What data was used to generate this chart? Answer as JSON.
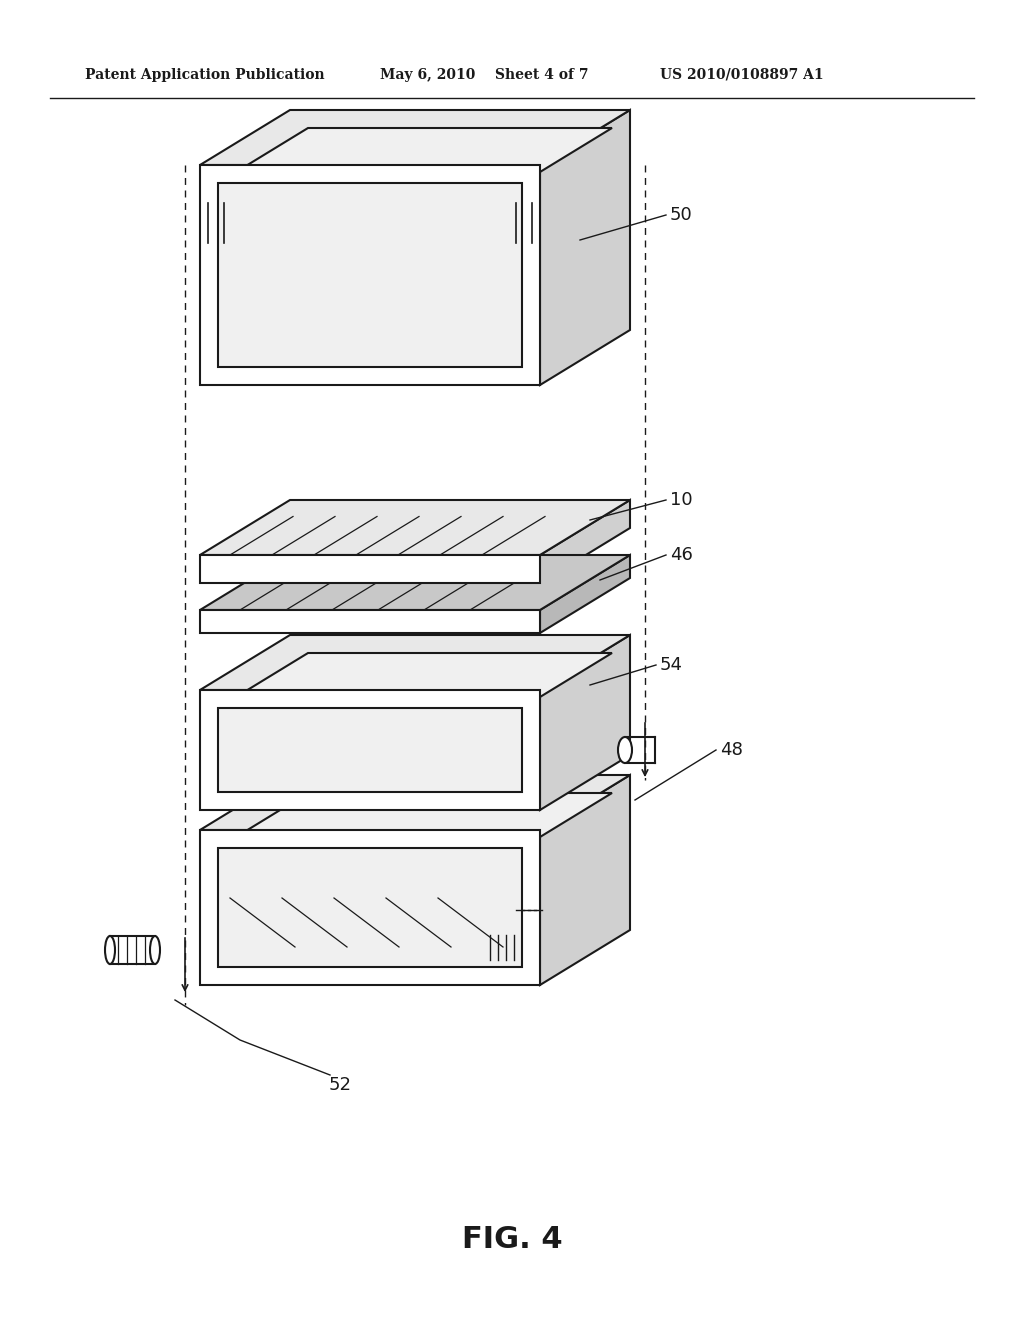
{
  "bg_color": "#ffffff",
  "line_color": "#1a1a1a",
  "header_text": "Patent Application Publication",
  "header_date": "May 6, 2010",
  "header_sheet": "Sheet 4 of 7",
  "header_patent": "US 2010/0108897 A1",
  "figure_label": "FIG. 4",
  "top_color": "#e8e8e8",
  "side_color": "#d0d0d0",
  "face_color": "#ffffff",
  "inner_color": "#f0f0f0"
}
